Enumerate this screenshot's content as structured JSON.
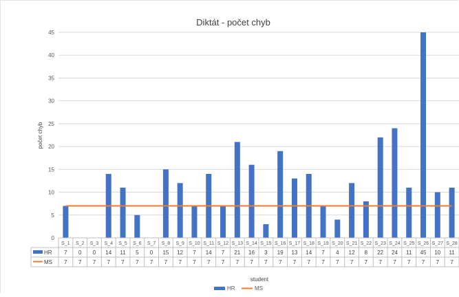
{
  "chart_data": {
    "type": "bar",
    "title": "Diktát - počet chyb",
    "xlabel": "student",
    "ylabel": "počet chyb",
    "ylim": [
      0,
      45
    ],
    "yticks": [
      0,
      5,
      10,
      15,
      20,
      25,
      30,
      35,
      40,
      45
    ],
    "grid": true,
    "legend_position": "bottom",
    "categories": [
      "S_1",
      "S_2",
      "S_3",
      "S_4",
      "S_5",
      "S_6",
      "S_7",
      "S_8",
      "S_9",
      "S_10",
      "S_11",
      "S_12",
      "S_13",
      "S_14",
      "S_15",
      "S_16",
      "S_17",
      "S_18",
      "S_19",
      "S_20",
      "S_21",
      "S_22",
      "S_23",
      "S_24",
      "S_25",
      "S_26",
      "S_27",
      "S_28"
    ],
    "series": [
      {
        "name": "HR",
        "type": "bar",
        "color": "#4472c4",
        "values": [
          7,
          0,
          0,
          14,
          11,
          5,
          0,
          15,
          12,
          7,
          14,
          7,
          21,
          16,
          3,
          19,
          13,
          14,
          7,
          4,
          12,
          8,
          22,
          24,
          11,
          45,
          10,
          11
        ]
      },
      {
        "name": "MS",
        "type": "line",
        "color": "#ed7d31",
        "values": [
          7,
          7,
          7,
          7,
          7,
          7,
          7,
          7,
          7,
          7,
          7,
          7,
          7,
          7,
          7,
          7,
          7,
          7,
          7,
          7,
          7,
          7,
          7,
          7,
          7,
          7,
          7,
          7
        ]
      }
    ]
  }
}
